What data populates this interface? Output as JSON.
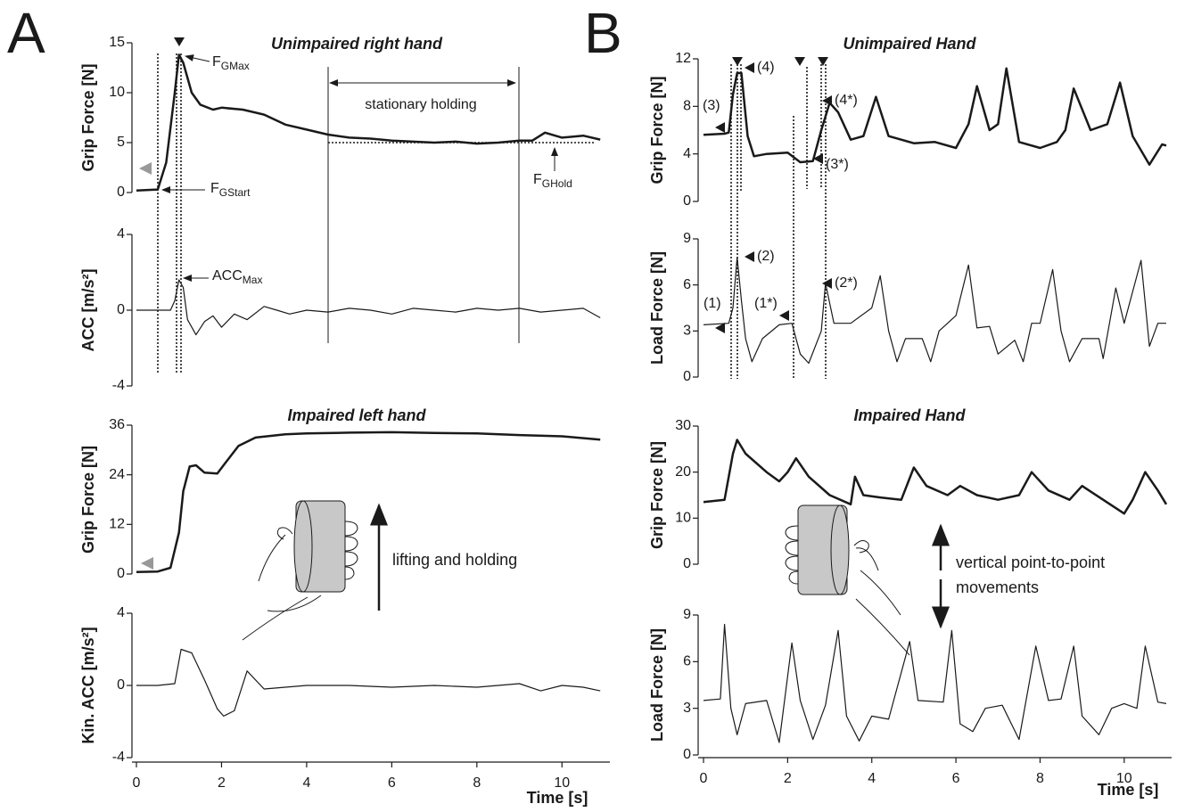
{
  "panel_labels": [
    "A",
    "B"
  ],
  "chart_data": [
    {
      "type": "line",
      "title": "Unimpaired right hand",
      "ylabel": "Grip Force [N]",
      "ylim": [
        0,
        15
      ],
      "yticks": [
        0,
        5,
        10,
        15
      ],
      "x": [
        0,
        0.5,
        0.7,
        0.9,
        1.0,
        1.1,
        1.3,
        1.5,
        1.8,
        2,
        2.5,
        3,
        3.5,
        4,
        4.5,
        5,
        5.5,
        6,
        6.5,
        7,
        7.5,
        8,
        8.5,
        9,
        9.3,
        9.6,
        10,
        10.5,
        10.9
      ],
      "series": [
        {
          "color": "#1a1a1a",
          "values": [
            0.2,
            0.3,
            3,
            10,
            13.8,
            13,
            10,
            8.8,
            8.3,
            8.5,
            8.3,
            7.8,
            6.8,
            6.3,
            5.8,
            5.5,
            5.4,
            5.2,
            5.1,
            5.0,
            5.1,
            4.9,
            5.0,
            5.2,
            5.2,
            6,
            5.5,
            5.7,
            5.3
          ]
        }
      ],
      "annotations": [
        {
          "text": "F",
          "sub": "GMax"
        },
        {
          "text": "F",
          "sub": "GStart"
        },
        {
          "text": "F",
          "sub": "GHold"
        },
        "stationary holding"
      ]
    },
    {
      "type": "line",
      "ylabel": "ACC [m/s²]",
      "ylim": [
        -4,
        4
      ],
      "yticks": [
        -4,
        0,
        4
      ],
      "x": [
        0,
        0.5,
        0.8,
        0.9,
        1.0,
        1.1,
        1.2,
        1.4,
        1.6,
        1.8,
        2,
        2.3,
        2.6,
        3,
        3.3,
        3.6,
        4,
        4.5,
        5,
        5.5,
        6,
        6.5,
        7,
        7.5,
        8,
        8.5,
        9,
        9.5,
        10,
        10.5,
        10.9
      ],
      "series": [
        {
          "color": "#1a1a1a",
          "values": [
            0,
            0,
            0,
            0.5,
            1.6,
            1.2,
            -0.5,
            -1.3,
            -0.6,
            -0.3,
            -0.9,
            -0.2,
            -0.5,
            0.2,
            0,
            -0.2,
            0,
            -0.1,
            0.1,
            0,
            -0.2,
            0.1,
            0,
            -0.1,
            0.1,
            0,
            0.1,
            -0.1,
            0,
            0.1,
            -0.4
          ]
        }
      ],
      "annotations": [
        {
          "text": "ACC",
          "sub": "Max"
        }
      ]
    },
    {
      "type": "line",
      "title": "Impaired left hand",
      "ylabel": "Grip Force [N]",
      "ylim": [
        0,
        36
      ],
      "yticks": [
        0,
        12,
        24,
        36
      ],
      "x": [
        0,
        0.5,
        0.8,
        1.0,
        1.1,
        1.25,
        1.4,
        1.6,
        1.9,
        2.1,
        2.4,
        2.8,
        3.5,
        4,
        5,
        6,
        7,
        8,
        9,
        10,
        10.9
      ],
      "series": [
        {
          "color": "#1a1a1a",
          "values": [
            0.5,
            0.6,
            1.5,
            10,
            20,
            26,
            26.3,
            24.5,
            24.3,
            27,
            31,
            33,
            33.8,
            34,
            34.2,
            34.3,
            34.1,
            34,
            33.6,
            33.3,
            32.5
          ]
        }
      ],
      "annotations": [
        "lifting and holding"
      ]
    },
    {
      "type": "line",
      "ylabel": "Kin. ACC [m/s²]",
      "ylim": [
        -4,
        4
      ],
      "yticks": [
        -4,
        0,
        4
      ],
      "xlim": [
        0,
        11
      ],
      "xticks": [
        0,
        2,
        4,
        6,
        8,
        10
      ],
      "xlabel": "Time [s]",
      "x": [
        0,
        0.5,
        0.9,
        1.05,
        1.3,
        1.6,
        1.9,
        2.05,
        2.3,
        2.6,
        3,
        3.5,
        4,
        5,
        6,
        7,
        8,
        9,
        9.5,
        10,
        10.5,
        10.9
      ],
      "series": [
        {
          "color": "#1a1a1a",
          "values": [
            0,
            0,
            0.1,
            2,
            1.8,
            0.3,
            -1.3,
            -1.7,
            -1.4,
            0.8,
            -0.2,
            -0.1,
            0,
            0,
            -0.1,
            0,
            -0.1,
            0.1,
            -0.3,
            0,
            -0.1,
            -0.3
          ]
        }
      ]
    },
    {
      "type": "line",
      "title": "Unimpaired Hand",
      "ylabel": "Grip Force [N]",
      "ylim": [
        0,
        12
      ],
      "yticks": [
        0,
        4,
        8,
        12
      ],
      "x": [
        0,
        0.5,
        0.6,
        0.7,
        0.8,
        0.9,
        1.05,
        1.2,
        1.5,
        2,
        2.3,
        2.6,
        2.8,
        3.0,
        3.2,
        3.5,
        3.8,
        4.1,
        4.4,
        5,
        5.5,
        6,
        6.3,
        6.5,
        6.8,
        7,
        7.2,
        7.5,
        8,
        8.4,
        8.6,
        8.8,
        9.2,
        9.6,
        9.9,
        10.2,
        10.6,
        10.9,
        11
      ],
      "series": [
        {
          "color": "#1a1a1a",
          "values": [
            5.6,
            5.7,
            5.8,
            9,
            10.8,
            10.8,
            5.5,
            3.8,
            4,
            4.1,
            3.3,
            3.4,
            6,
            8.3,
            7.5,
            5.2,
            5.5,
            8.8,
            5.5,
            4.9,
            5,
            4.5,
            6.5,
            9.7,
            6,
            6.5,
            11.2,
            5,
            4.5,
            5,
            6,
            9.5,
            6,
            6.5,
            10,
            5.5,
            3.1,
            4.8,
            4.7
          ]
        }
      ],
      "annotations": [
        "(3)",
        "(4)",
        "(3*)",
        "(4*)"
      ]
    },
    {
      "type": "line",
      "ylabel": "Load Force [N]",
      "ylim": [
        0,
        9
      ],
      "yticks": [
        0,
        3,
        6,
        9
      ],
      "x": [
        0,
        0.6,
        0.7,
        0.8,
        0.9,
        1.0,
        1.15,
        1.4,
        1.8,
        2.1,
        2.3,
        2.5,
        2.8,
        2.9,
        3.1,
        3.5,
        4.0,
        4.2,
        4.4,
        4.6,
        4.8,
        5.2,
        5.4,
        5.6,
        6.0,
        6.3,
        6.5,
        6.8,
        7.0,
        7.4,
        7.6,
        7.8,
        8.0,
        8.3,
        8.5,
        8.7,
        9.0,
        9.4,
        9.5,
        9.8,
        10.0,
        10.4,
        10.6,
        10.8,
        11
      ],
      "series": [
        {
          "color": "#1a1a1a",
          "values": [
            3.4,
            3.5,
            4.5,
            7.8,
            5,
            2.5,
            1,
            2.5,
            3.4,
            3.5,
            1.5,
            0.9,
            3,
            6.1,
            3.5,
            3.5,
            4.5,
            6.6,
            3,
            1,
            2.5,
            2.5,
            1,
            3,
            4,
            7.3,
            3.2,
            3.3,
            1.5,
            2.4,
            1,
            3.5,
            3.5,
            7,
            3,
            1,
            2.5,
            2.5,
            1.2,
            5.8,
            3.5,
            7.6,
            2,
            3.5,
            3.5
          ]
        }
      ],
      "annotations": [
        "(1)",
        "(2)",
        "(1*)",
        "(2*)"
      ]
    },
    {
      "type": "line",
      "title": "Impaired Hand",
      "ylabel": "Grip Force [N]",
      "ylim": [
        0,
        30
      ],
      "yticks": [
        0,
        10,
        20,
        30
      ],
      "x": [
        0,
        0.5,
        0.7,
        0.8,
        1.0,
        1.5,
        1.8,
        2.0,
        2.2,
        2.5,
        3,
        3.5,
        3.6,
        3.8,
        4.2,
        4.7,
        5,
        5.3,
        5.8,
        6.1,
        6.5,
        7,
        7.5,
        7.8,
        8.2,
        8.7,
        9,
        9.5,
        10,
        10.2,
        10.5,
        10.8,
        11
      ],
      "series": [
        {
          "color": "#1a1a1a",
          "values": [
            13.5,
            14,
            24,
            27,
            24,
            20,
            18,
            20,
            23,
            19,
            15,
            13,
            19,
            15,
            14.5,
            14,
            21,
            17,
            15,
            17,
            15,
            14,
            15,
            20,
            16,
            14,
            17,
            14,
            11,
            14,
            20,
            16,
            13
          ]
        }
      ],
      "annotations": [
        [
          "vertical point-to-point",
          "movements"
        ]
      ]
    },
    {
      "type": "line",
      "ylabel": "Load Force [N]",
      "ylim": [
        0,
        9
      ],
      "yticks": [
        0,
        3,
        6,
        9
      ],
      "xlim": [
        0,
        11
      ],
      "xticks": [
        0,
        2,
        4,
        6,
        8,
        10
      ],
      "xlabel": "Time [s]",
      "x": [
        0,
        0.4,
        0.5,
        0.65,
        0.8,
        1.0,
        1.5,
        1.8,
        2.1,
        2.3,
        2.6,
        2.9,
        3.2,
        3.4,
        3.7,
        4,
        4.4,
        4.9,
        5.1,
        5.7,
        5.9,
        6.1,
        6.4,
        6.7,
        7.1,
        7.5,
        7.9,
        8.2,
        8.5,
        8.8,
        9.0,
        9.4,
        9.7,
        10.0,
        10.3,
        10.5,
        10.8,
        11
      ],
      "series": [
        {
          "color": "#1a1a1a",
          "values": [
            3.5,
            3.6,
            8.4,
            3,
            1.3,
            3.3,
            3.5,
            0.8,
            7.2,
            3.5,
            1,
            3.2,
            8,
            2.5,
            0.9,
            2.5,
            2.3,
            7.3,
            3.5,
            3.4,
            8,
            2,
            1.5,
            3,
            3.2,
            1,
            7,
            3.5,
            3.6,
            7,
            2.5,
            1.3,
            3,
            3.3,
            3,
            7,
            3.4,
            3.3
          ]
        }
      ]
    }
  ]
}
